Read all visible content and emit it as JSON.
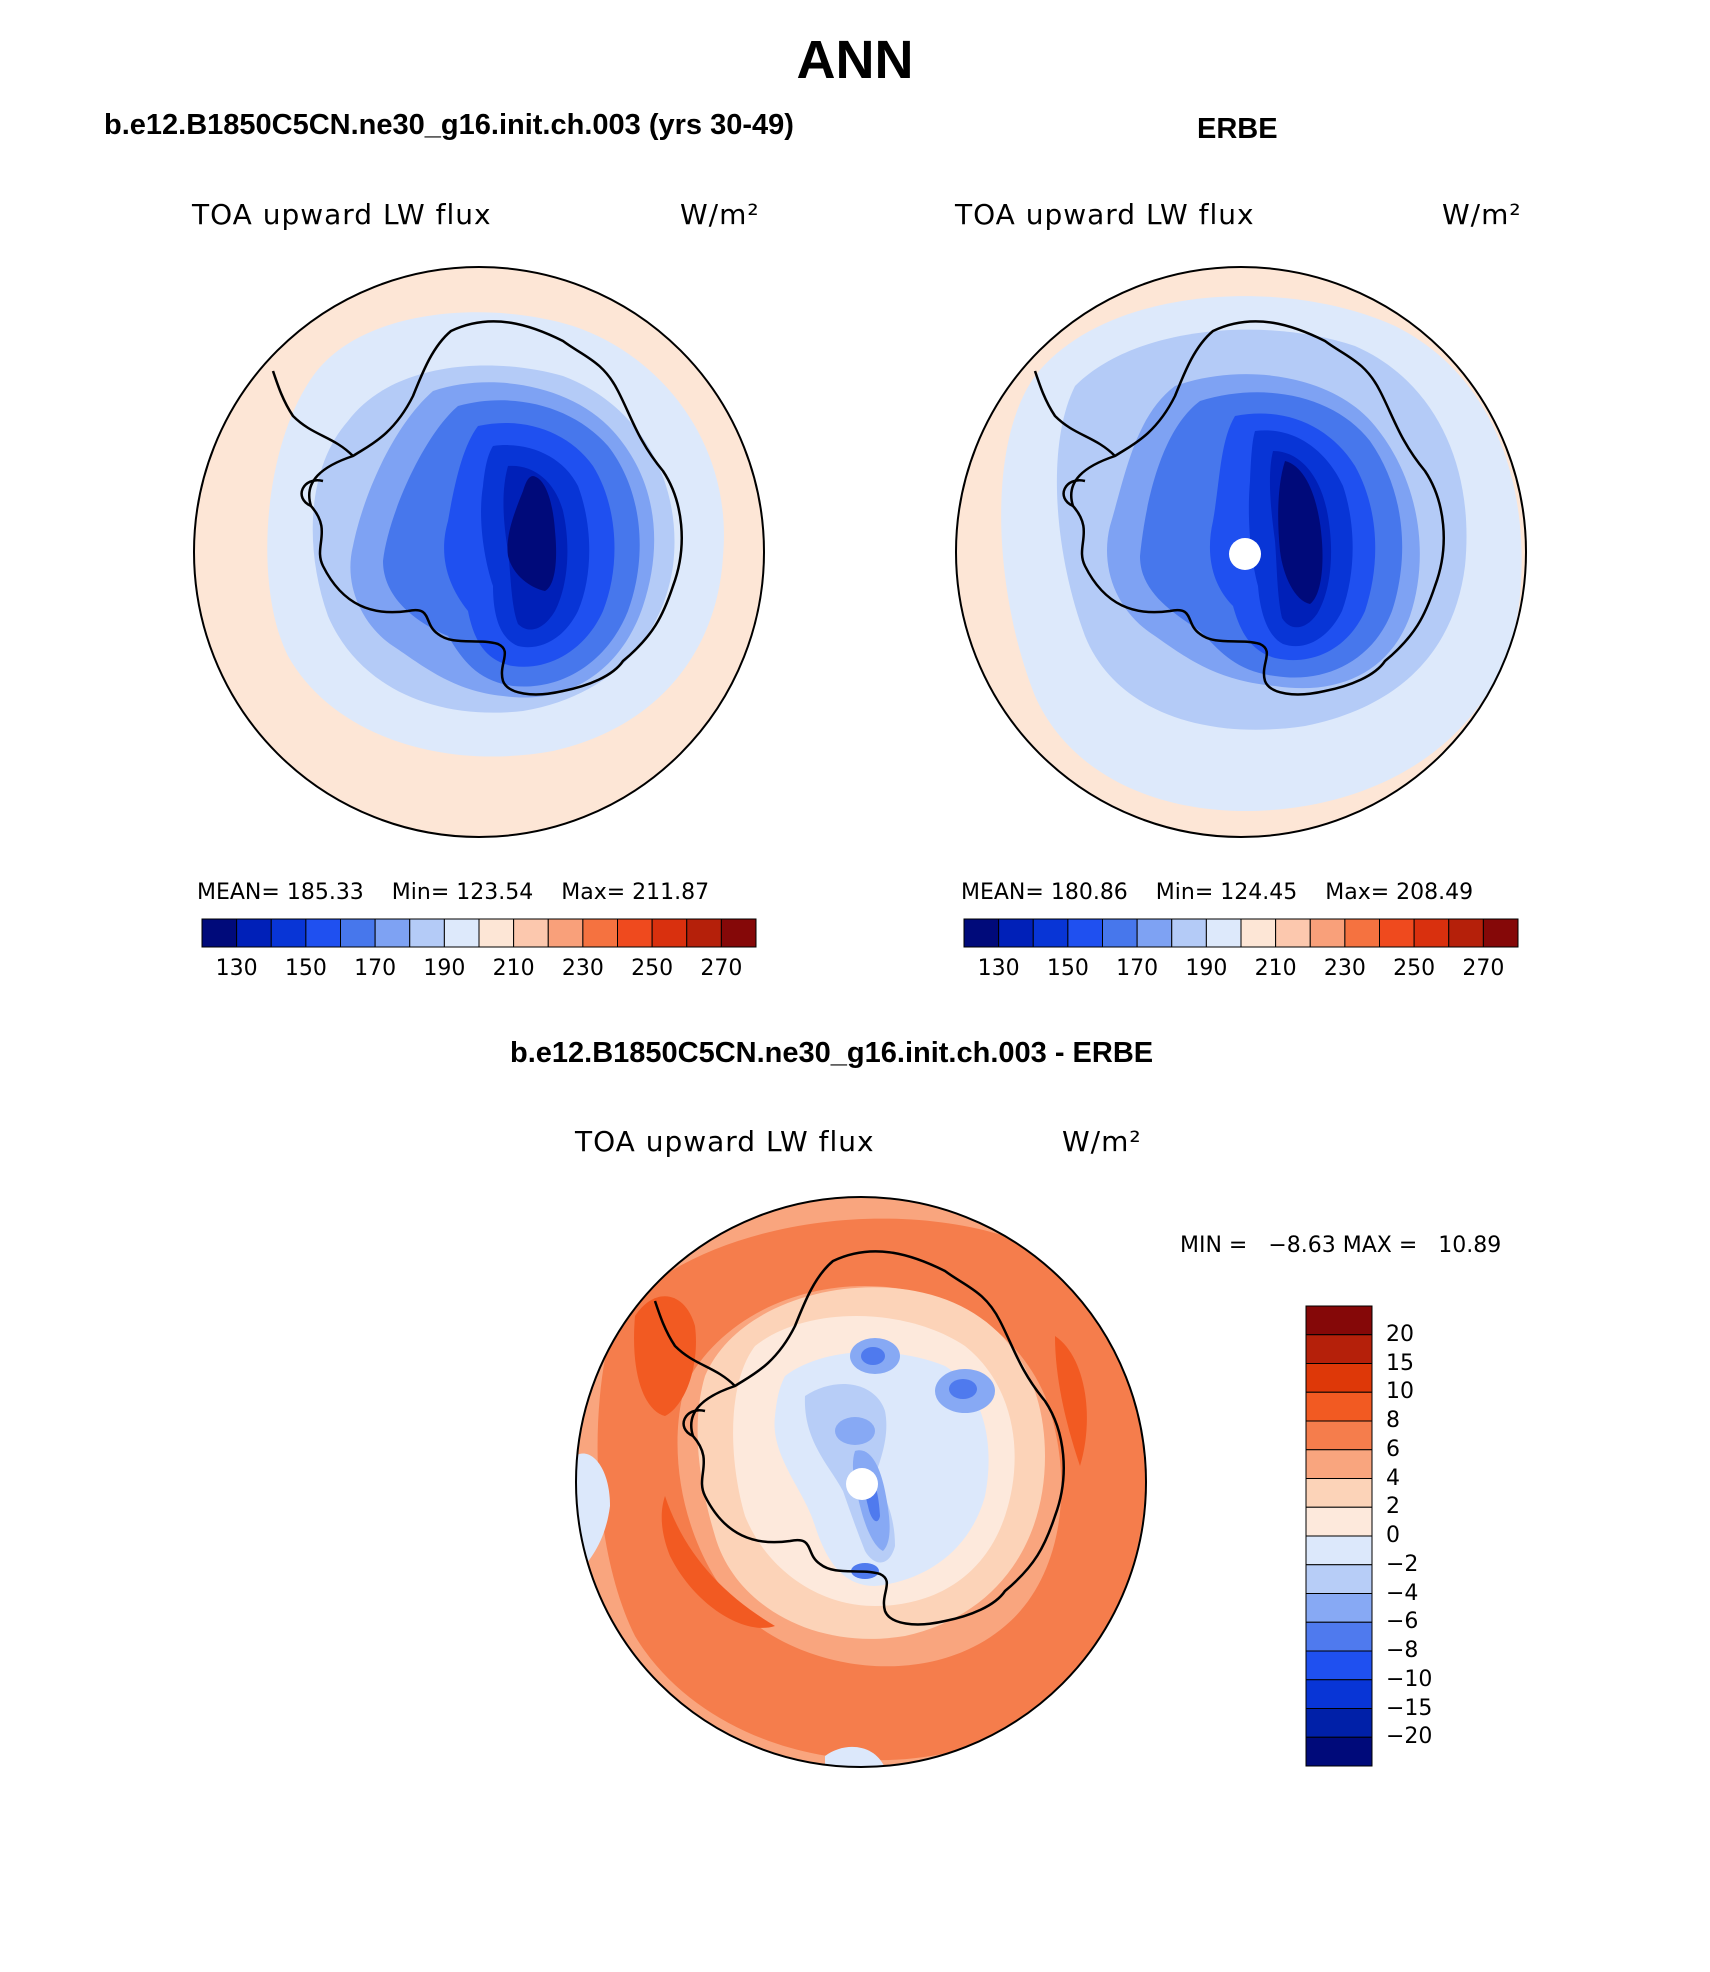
{
  "figure": {
    "title": "ANN"
  },
  "panels": [
    {
      "title": "b.e12.B1850C5CN.ne30_g16.init.ch.003 (yrs 30-49)",
      "variable": "TOA upward LW flux",
      "units": "W/m²",
      "stats": {
        "mean_label": "MEAN=",
        "mean": "185.33",
        "min_label": "Min=",
        "min": "123.54",
        "max_label": "Max=",
        "max": "211.87"
      }
    },
    {
      "title": "ERBE",
      "variable": "TOA upward LW flux",
      "units": "W/m²",
      "stats": {
        "mean_label": "MEAN=",
        "mean": "180.86",
        "min_label": "Min=",
        "min": "124.45",
        "max_label": "Max=",
        "max": "208.49"
      }
    },
    {
      "title": "b.e12.B1850C5CN.ne30_g16.init.ch.003 - ERBE",
      "variable": "TOA upward LW flux",
      "units": "W/m²",
      "stats": {
        "min_label": "MIN =",
        "min": "−8.63",
        "max_label": "MAX =",
        "max": "10.89"
      }
    }
  ],
  "colorbars": {
    "absolute": {
      "labels": [
        "130",
        "150",
        "170",
        "190",
        "210",
        "230",
        "250",
        "270"
      ],
      "colors": [
        "#000a7a",
        "#0020b8",
        "#0835d6",
        "#1f50f0",
        "#4777ec",
        "#7ea2f3",
        "#b4cbf7",
        "#dde9fb",
        "#fde6d6",
        "#fcc8ae",
        "#f9a07a",
        "#f57240",
        "#ef4a1e",
        "#d9300e",
        "#b5200a",
        "#850808"
      ]
    },
    "difference": {
      "labels": [
        "20",
        "15",
        "10",
        "8",
        "6",
        "4",
        "2",
        "0",
        "−2",
        "−4",
        "−6",
        "−8",
        "−10",
        "−15",
        "−20"
      ],
      "colors": [
        "#850808",
        "#b5200a",
        "#de3808",
        "#f25a22",
        "#f57d4c",
        "#f9a57e",
        "#fcd3b8",
        "#fde9dc",
        "#dce8fb",
        "#b7cdf7",
        "#87a9f4",
        "#4f7aee",
        "#1f50f0",
        "#0835d6",
        "#0020a8",
        "#000a7a"
      ]
    }
  }
}
